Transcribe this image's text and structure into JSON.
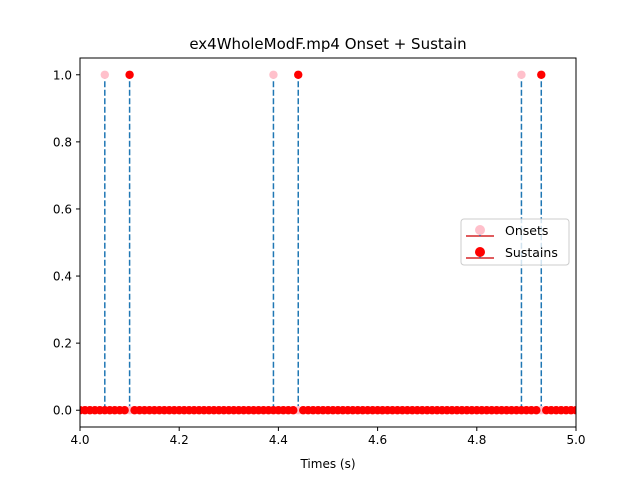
{
  "chart_data": {
    "type": "scatter",
    "title": "ex4WholeModF.mp4 Onset + Sustain",
    "xlabel": "Times (s)",
    "ylabel": "",
    "xlim": [
      4.0,
      5.0
    ],
    "ylim": [
      -0.05,
      1.05
    ],
    "xticks": [
      4.0,
      4.2,
      4.4,
      4.6,
      4.8,
      5.0
    ],
    "xtick_labels": [
      "4.0",
      "4.2",
      "4.4",
      "4.6",
      "4.8",
      "5.0"
    ],
    "yticks": [
      0.0,
      0.2,
      0.4,
      0.6,
      0.8,
      1.0
    ],
    "ytick_labels": [
      "0.0",
      "0.2",
      "0.4",
      "0.6",
      "0.8",
      "1.0"
    ],
    "grid": false,
    "legend_position": "center-right",
    "sample_step": 0.01,
    "series": [
      {
        "name": "Onsets",
        "marker_color": "#ffc0cb",
        "stem_color": "#1f77b4",
        "baseline_color": "#d62728",
        "points": [
          {
            "x": 4.05,
            "y": 1.0
          },
          {
            "x": 4.39,
            "y": 1.0
          },
          {
            "x": 4.89,
            "y": 1.0
          }
        ]
      },
      {
        "name": "Sustains",
        "marker_color": "#ff0000",
        "stem_color": "#1f77b4",
        "baseline_color": "#d62728",
        "points": [
          {
            "x": 4.1,
            "y": 1.0
          },
          {
            "x": 4.44,
            "y": 1.0
          },
          {
            "x": 4.93,
            "y": 1.0
          }
        ]
      }
    ]
  }
}
